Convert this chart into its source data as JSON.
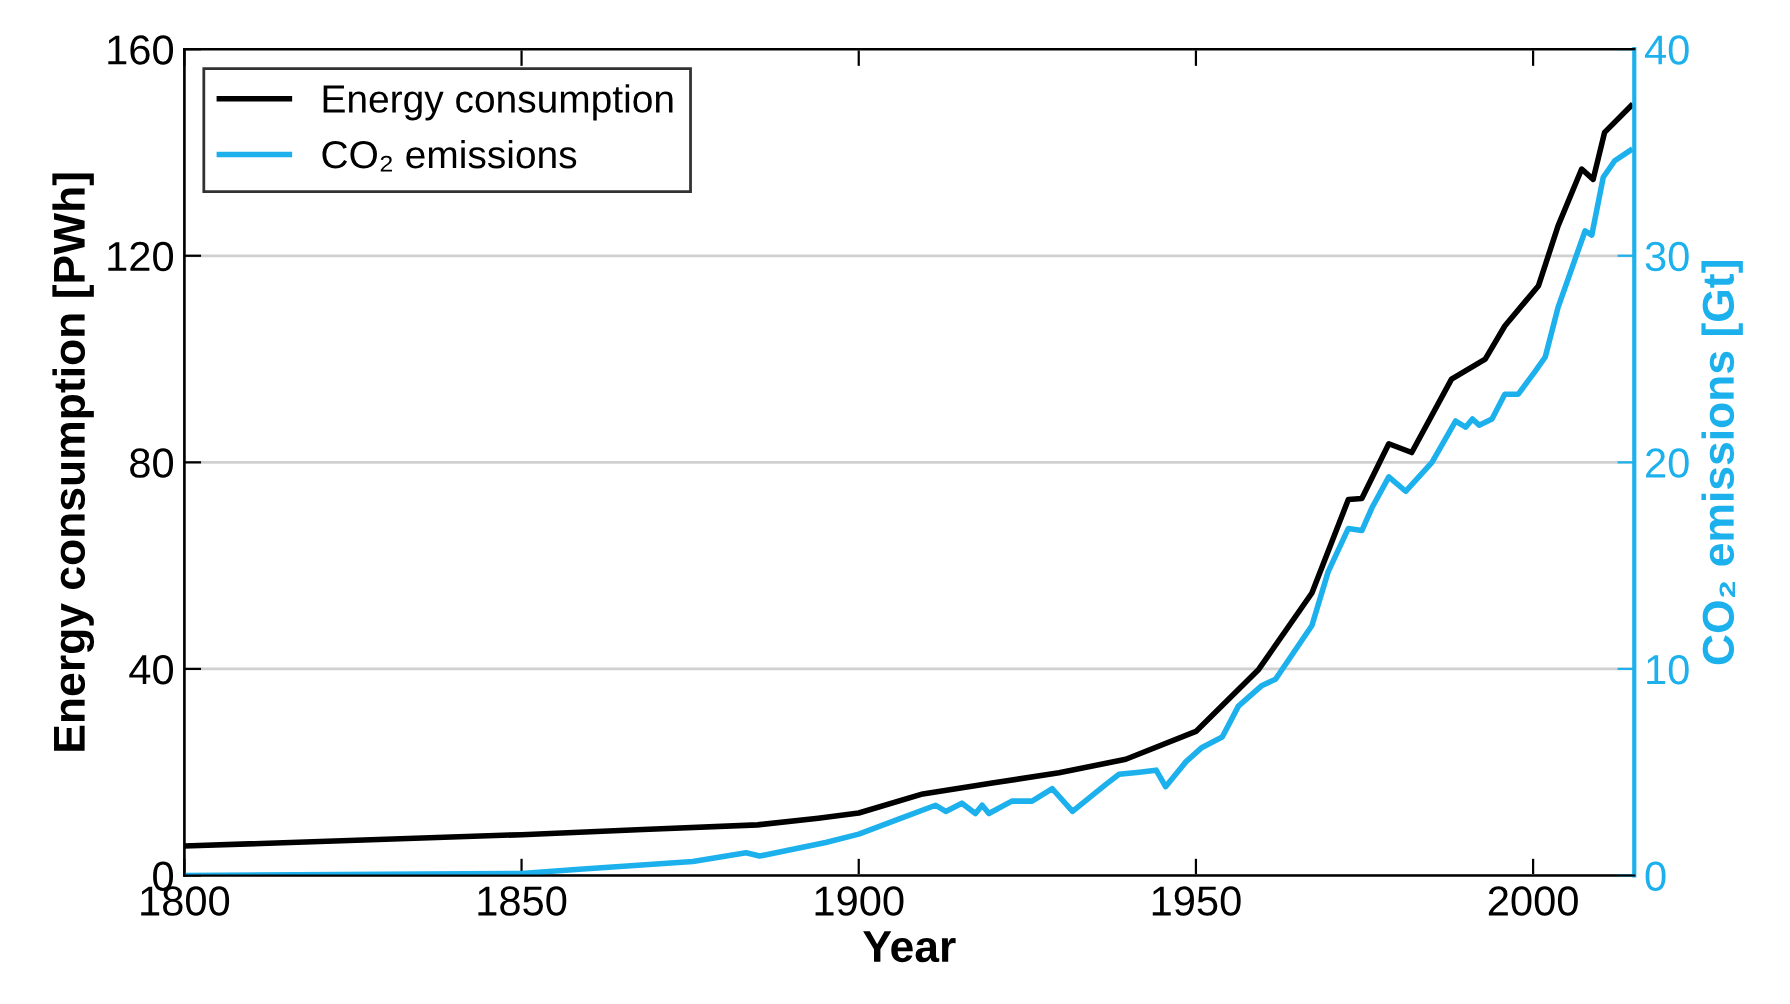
{
  "chart_data": {
    "type": "line",
    "xlabel": "Year",
    "ylabel": "Energy consumption [PWh]",
    "y2label": "CO₂ emissions [Gt]",
    "xlim": [
      1800,
      2015
    ],
    "xticks": [
      1800,
      1850,
      1900,
      1950,
      2000
    ],
    "ylim": [
      0,
      160
    ],
    "yticks": [
      0,
      40,
      80,
      120,
      160
    ],
    "y2lim": [
      0,
      40
    ],
    "y2ticks": [
      0,
      10,
      20,
      30,
      40
    ],
    "grid": "y",
    "legend": "top left",
    "line_style": "solid",
    "marker": "none",
    "series": [
      {
        "name": "Energy consumption",
        "color": "#000000",
        "x": [
          1800,
          1850,
          1868,
          1885,
          1894,
          1900,
          1909.5,
          1919.8,
          1929.7,
          1939.6,
          1950,
          1959.3,
          1967.2,
          1972.6,
          1974.6,
          1978.6,
          1982,
          1987.9,
          1992.9,
          1995.8,
          2000.8,
          2003.7,
          2007.2,
          2008.9,
          2010.6,
          2014.5
        ],
        "values": [
          5.7,
          7.9,
          8.9,
          9.8,
          11.1,
          12.1,
          15.8,
          17.9,
          19.9,
          22.5,
          27.9,
          39.9,
          54.7,
          72.8,
          73,
          83.6,
          81.9,
          96.1,
          100,
          106.4,
          114.2,
          125.8,
          136.8,
          134.8,
          143.9,
          149
        ]
      },
      {
        "name": "CO₂ emissions",
        "color": "#1cb1ec",
        "axis": "y2",
        "x": [
          1800,
          1850,
          1858.6,
          1875.4,
          1883.3,
          1885.3,
          1895.1,
          1900,
          1906.5,
          1911.4,
          1912.9,
          1915.3,
          1917.3,
          1918.3,
          1919.3,
          1922.7,
          1925.7,
          1928.7,
          1931.7,
          1936.6,
          1938.6,
          1941.6,
          1944.1,
          1945.5,
          1948.5,
          1950.9,
          1953.9,
          1956.3,
          1959.8,
          1961.8,
          1967.2,
          1969.6,
          1972.6,
          1974.6,
          1976.1,
          1978.6,
          1981.1,
          1985,
          1988.5,
          1990,
          1991,
          1992,
          1993.9,
          1995.8,
          1997.8,
          2000.3,
          2001.8,
          2003.7,
          2007.7,
          2008.7,
          2010.4,
          2012.1,
          2014.4
        ],
        "values": [
          0,
          0.1,
          0.3,
          0.68,
          1.1,
          0.94,
          1.6,
          2.0,
          2.8,
          3.4,
          3.1,
          3.5,
          3.0,
          3.4,
          3.0,
          3.6,
          3.6,
          4.2,
          3.1,
          4.4,
          4.9,
          5.0,
          5.1,
          4.3,
          5.5,
          6.2,
          6.7,
          8.2,
          9.2,
          9.5,
          12.1,
          14.7,
          16.8,
          16.7,
          17.8,
          19.3,
          18.6,
          20.0,
          22.0,
          21.7,
          22.1,
          21.8,
          22.1,
          23.3,
          23.3,
          24.4,
          25.1,
          27.5,
          31.2,
          31.0,
          33.8,
          34.6,
          35.1
        ]
      }
    ]
  }
}
